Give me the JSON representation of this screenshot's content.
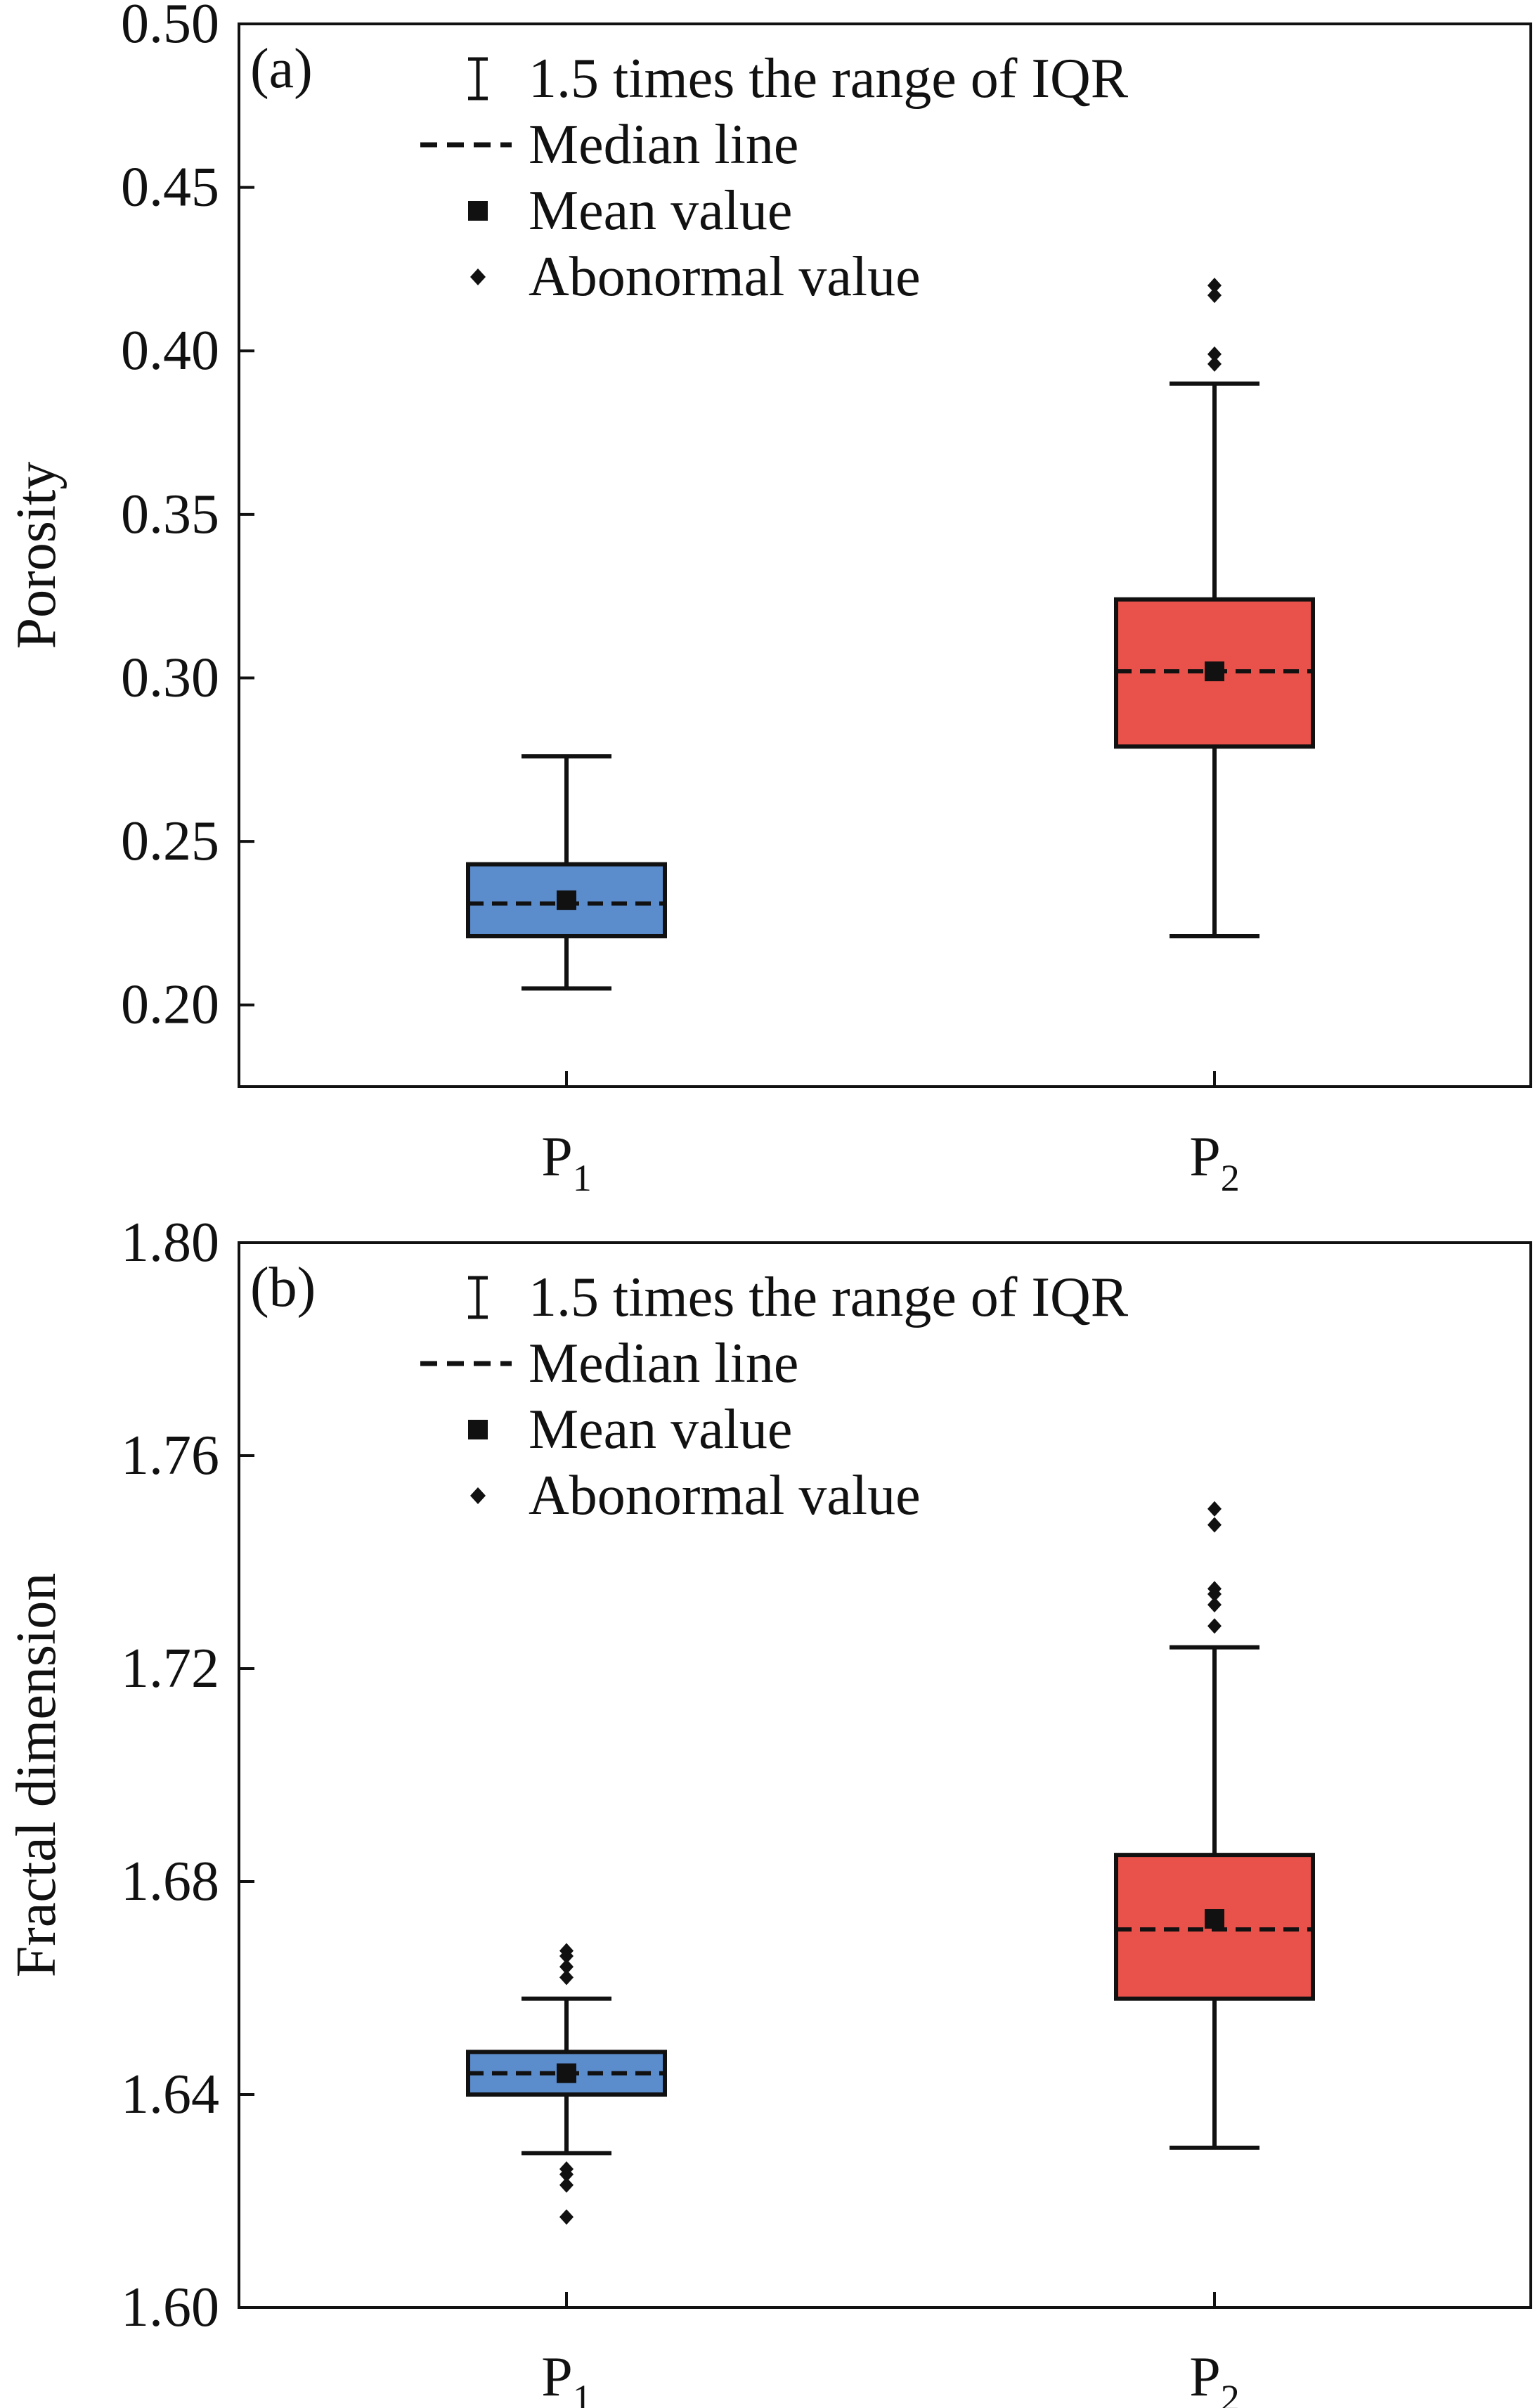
{
  "chart_data": [
    {
      "type": "box",
      "panel_label": "(a)",
      "ylabel": "Porosity",
      "ylim": [
        0.175,
        0.5
      ],
      "yticks": [
        0.2,
        0.25,
        0.3,
        0.35,
        0.4,
        0.45,
        0.5
      ],
      "ytick_labels": [
        "0.20",
        "0.25",
        "0.30",
        "0.35",
        "0.40",
        "0.45",
        "0.50"
      ],
      "grid": false,
      "legend_position": "top",
      "legend": [
        {
          "symbol": "whisker",
          "label": "1.5 times the range of IQR"
        },
        {
          "symbol": "dashed-line",
          "label": "Median line"
        },
        {
          "symbol": "square",
          "label": "Mean value"
        },
        {
          "symbol": "diamond",
          "label": "Abonormal value"
        }
      ],
      "categories": [
        {
          "label": "P",
          "subscript": "1",
          "color": "#5b8ccc",
          "whisker_low": 0.205,
          "q1": 0.221,
          "median": 0.231,
          "q3": 0.243,
          "whisker_high": 0.276,
          "mean": 0.232,
          "outliers": []
        },
        {
          "label": "P",
          "subscript": "2",
          "color": "#e8524a",
          "whisker_low": 0.221,
          "q1": 0.279,
          "median": 0.302,
          "q3": 0.324,
          "whisker_high": 0.39,
          "mean": 0.302,
          "outliers": [
            0.396,
            0.399,
            0.417,
            0.42
          ]
        }
      ]
    },
    {
      "type": "box",
      "panel_label": "(b)",
      "ylabel": "Fractal dimension",
      "ylim": [
        1.6,
        1.8
      ],
      "yticks": [
        1.6,
        1.64,
        1.68,
        1.72,
        1.76,
        1.8
      ],
      "ytick_labels": [
        "1.60",
        "1.64",
        "1.68",
        "1.72",
        "1.76",
        "1.80"
      ],
      "grid": false,
      "legend_position": "top",
      "legend": [
        {
          "symbol": "whisker",
          "label": "1.5 times the range of IQR"
        },
        {
          "symbol": "dashed-line",
          "label": "Median line"
        },
        {
          "symbol": "square",
          "label": "Mean value"
        },
        {
          "symbol": "diamond",
          "label": "Abonormal value"
        }
      ],
      "categories": [
        {
          "label": "P",
          "subscript": "1",
          "color": "#5b8ccc",
          "whisker_low": 1.629,
          "q1": 1.64,
          "median": 1.644,
          "q3": 1.648,
          "whisker_high": 1.658,
          "mean": 1.644,
          "outliers": [
            1.617,
            1.623,
            1.625,
            1.626,
            1.662,
            1.664,
            1.666,
            1.667
          ]
        },
        {
          "label": "P",
          "subscript": "2",
          "color": "#e8524a",
          "whisker_low": 1.63,
          "q1": 1.658,
          "median": 1.671,
          "q3": 1.685,
          "whisker_high": 1.724,
          "mean": 1.673,
          "outliers": [
            1.728,
            1.732,
            1.734,
            1.735,
            1.747,
            1.75
          ]
        }
      ]
    }
  ]
}
